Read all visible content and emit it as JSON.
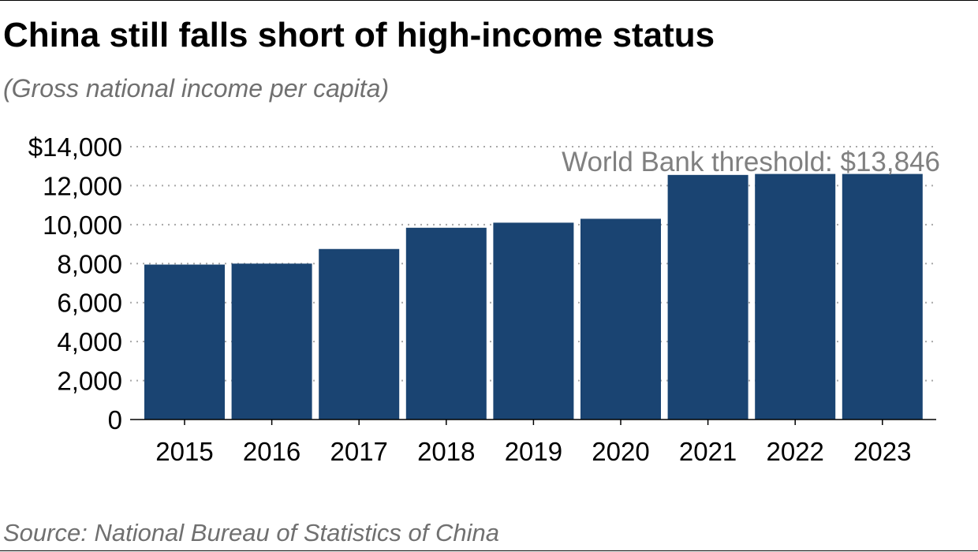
{
  "title": "China still falls short of high-income status",
  "subtitle": "(Gross national income per capita)",
  "source": "Source: National Bureau of Statistics of China",
  "colors": {
    "bar": "#1a4472",
    "grid": "#a8a8a8",
    "threshold_label": "#808080",
    "axis_text": "#000000"
  },
  "chart_data": {
    "type": "bar",
    "categories": [
      "2015",
      "2016",
      "2017",
      "2018",
      "2019",
      "2020",
      "2021",
      "2022",
      "2023"
    ],
    "values": [
      7950,
      8000,
      8750,
      9840,
      10100,
      10300,
      12550,
      12600,
      12600
    ],
    "ylim": [
      0,
      14000
    ],
    "yticks": [
      0,
      2000,
      4000,
      6000,
      8000,
      10000,
      12000,
      14000
    ],
    "ytick_labels": [
      "0",
      "2,000",
      "4,000",
      "6,000",
      "8,000",
      "10,000",
      "12,000",
      "$14,000"
    ],
    "xlabel": "",
    "ylabel": "",
    "grid": "horizontal dotted",
    "annotation": {
      "text": "World Bank threshold: $13,846",
      "value": 13846
    }
  }
}
